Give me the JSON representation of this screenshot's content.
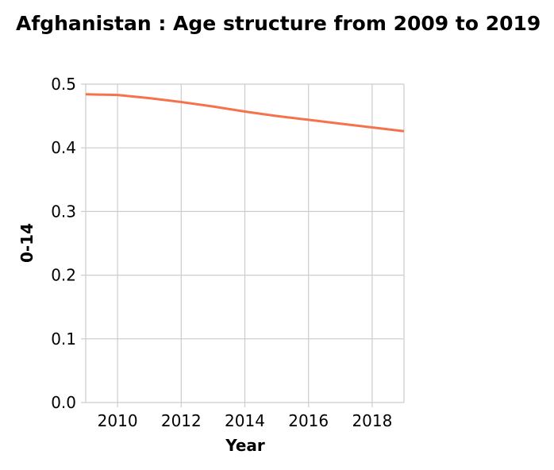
{
  "chart_data": {
    "type": "line",
    "title": "Afghanistan : Age structure from 2009 to 2019",
    "xlabel": "Year",
    "ylabel": "0-14",
    "xlim": [
      2009,
      2019
    ],
    "ylim": [
      0,
      0.5
    ],
    "grid": true,
    "x_ticks": [
      2010,
      2012,
      2014,
      2016,
      2018
    ],
    "x_tick_labels": [
      "2010",
      "2012",
      "2014",
      "2016",
      "2018"
    ],
    "y_ticks": [
      0,
      0.1,
      0.2,
      0.3,
      0.4,
      0.5
    ],
    "y_tick_labels": [
      "0.0",
      "0.1",
      "0.2",
      "0.3",
      "0.4",
      "0.5"
    ],
    "series": [
      {
        "color": "#f4734a",
        "x": [
          2009,
          2010,
          2011,
          2012,
          2013,
          2014,
          2015,
          2016,
          2017,
          2018,
          2019
        ],
        "values": [
          0.484,
          0.483,
          0.478,
          0.472,
          0.465,
          0.457,
          0.45,
          0.444,
          0.438,
          0.432,
          0.426
        ]
      }
    ]
  }
}
